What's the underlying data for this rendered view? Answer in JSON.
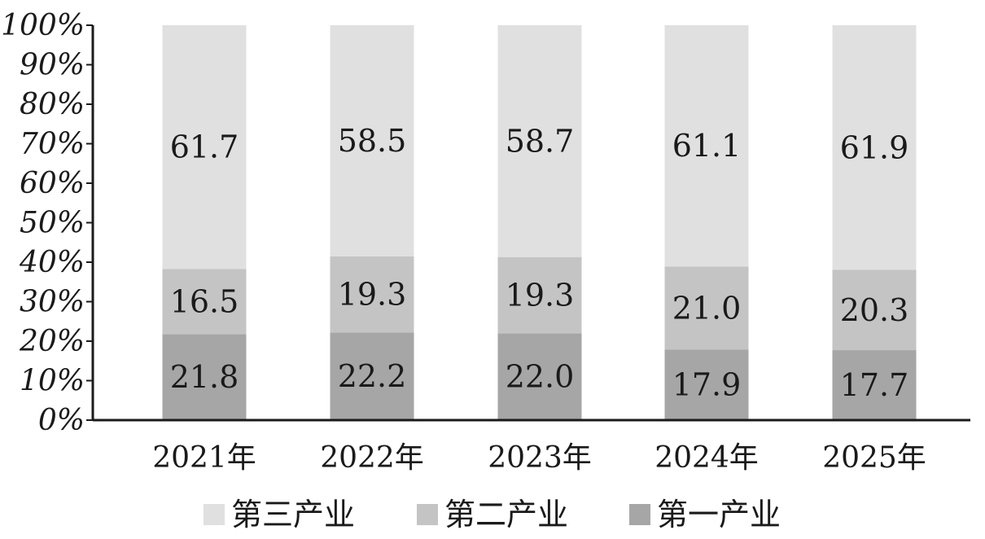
{
  "chart_data": {
    "type": "bar",
    "stacked": true,
    "percent_stacked": true,
    "categories": [
      "2021年",
      "2022年",
      "2023年",
      "2024年",
      "2025年"
    ],
    "series": [
      {
        "name": "第一产业",
        "values": [
          21.8,
          22.2,
          22.0,
          17.9,
          17.7
        ],
        "color": "#a6a6a6"
      },
      {
        "name": "第二产业",
        "values": [
          16.5,
          19.3,
          19.3,
          21.0,
          20.3
        ],
        "color": "#c4c4c4"
      },
      {
        "name": "第三产业",
        "values": [
          61.7,
          58.5,
          58.7,
          61.1,
          61.9
        ],
        "color": "#e0e0e0"
      }
    ],
    "y_ticks": [
      "0%",
      "10%",
      "20%",
      "30%",
      "40%",
      "50%",
      "60%",
      "70%",
      "80%",
      "90%",
      "100%"
    ],
    "ylim": [
      0,
      100
    ],
    "legend_order": [
      "第三产业",
      "第二产业",
      "第一产业"
    ],
    "legend_position": "bottom",
    "grid": false,
    "title": "",
    "xlabel": "",
    "ylabel": ""
  }
}
